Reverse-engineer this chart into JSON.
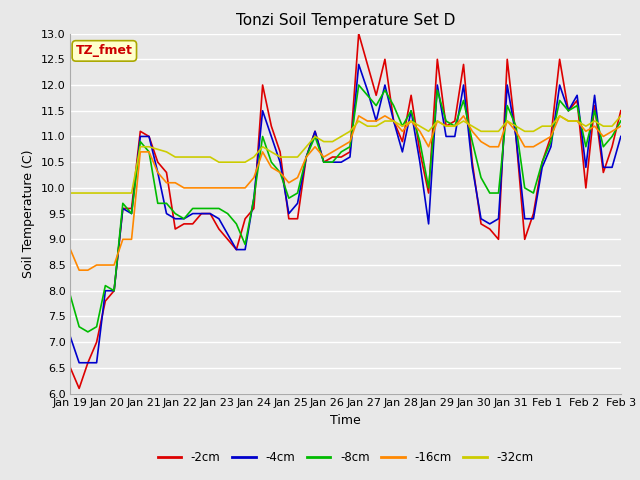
{
  "title": "Tonzi Soil Temperature Set D",
  "xlabel": "Time",
  "ylabel": "Soil Temperature (C)",
  "annotation": "TZ_fmet",
  "ylim": [
    6.0,
    13.0
  ],
  "yticks": [
    6.0,
    6.5,
    7.0,
    7.5,
    8.0,
    8.5,
    9.0,
    9.5,
    10.0,
    10.5,
    11.0,
    11.5,
    12.0,
    12.5,
    13.0
  ],
  "xtick_labels": [
    "Jan 19",
    "Jan 20",
    "Jan 21",
    "Jan 22",
    "Jan 23",
    "Jan 24",
    "Jan 25",
    "Jan 26",
    "Jan 27",
    "Jan 28",
    "Jan 29",
    "Jan 30",
    "Jan 31",
    "Feb 1",
    "Feb 2",
    "Feb 3"
  ],
  "series_labels": [
    "-2cm",
    "-4cm",
    "-8cm",
    "-16cm",
    "-32cm"
  ],
  "series_colors": [
    "#dd0000",
    "#0000cc",
    "#00bb00",
    "#ff8800",
    "#cccc00"
  ],
  "line_width": 1.2,
  "background_color": "#e8e8e8",
  "plot_bg_color": "#e8e8e8",
  "grid_color": "#ffffff",
  "title_fontsize": 11,
  "axis_fontsize": 9,
  "tick_fontsize": 8,
  "series_2cm": [
    6.5,
    6.1,
    6.6,
    7.0,
    7.8,
    8.0,
    9.6,
    9.6,
    11.1,
    11.0,
    10.5,
    10.3,
    9.2,
    9.3,
    9.3,
    9.5,
    9.5,
    9.2,
    9.0,
    8.8,
    9.4,
    9.6,
    12.0,
    11.2,
    10.7,
    9.4,
    9.4,
    10.6,
    11.1,
    10.5,
    10.6,
    10.6,
    10.7,
    13.0,
    12.4,
    11.8,
    12.5,
    11.3,
    10.9,
    11.8,
    10.7,
    9.9,
    12.5,
    11.2,
    11.3,
    12.4,
    10.5,
    9.3,
    9.2,
    9.0,
    12.5,
    11.0,
    9.0,
    9.5,
    10.5,
    11.0,
    12.5,
    11.5,
    11.7,
    10.0,
    11.6,
    10.3,
    10.8,
    11.5
  ],
  "series_4cm": [
    7.1,
    6.6,
    6.6,
    6.6,
    8.0,
    8.0,
    9.6,
    9.5,
    11.0,
    11.0,
    10.3,
    9.5,
    9.4,
    9.4,
    9.5,
    9.5,
    9.5,
    9.4,
    9.1,
    8.8,
    8.8,
    9.8,
    11.5,
    11.0,
    10.5,
    9.5,
    9.7,
    10.6,
    11.1,
    10.5,
    10.5,
    10.5,
    10.6,
    12.4,
    11.9,
    11.3,
    12.0,
    11.3,
    10.7,
    11.5,
    10.5,
    9.3,
    12.0,
    11.0,
    11.0,
    12.0,
    10.4,
    9.4,
    9.3,
    9.4,
    12.0,
    11.0,
    9.4,
    9.4,
    10.4,
    10.8,
    12.0,
    11.5,
    11.8,
    10.4,
    11.8,
    10.4,
    10.4,
    11.0
  ],
  "series_8cm": [
    7.9,
    7.3,
    7.2,
    7.3,
    8.1,
    8.0,
    9.7,
    9.5,
    10.9,
    10.7,
    9.7,
    9.7,
    9.5,
    9.4,
    9.6,
    9.6,
    9.6,
    9.6,
    9.5,
    9.3,
    8.9,
    9.8,
    11.0,
    10.5,
    10.3,
    9.8,
    9.9,
    10.6,
    11.0,
    10.5,
    10.5,
    10.7,
    10.8,
    12.0,
    11.8,
    11.6,
    11.9,
    11.6,
    11.2,
    11.5,
    10.9,
    10.0,
    11.9,
    11.3,
    11.2,
    11.7,
    10.9,
    10.2,
    9.9,
    9.9,
    11.6,
    11.2,
    10.0,
    9.9,
    10.5,
    10.9,
    11.7,
    11.5,
    11.6,
    10.8,
    11.5,
    10.8,
    11.0,
    11.3
  ],
  "series_16cm": [
    8.8,
    8.4,
    8.4,
    8.5,
    8.5,
    8.5,
    9.0,
    9.0,
    10.7,
    10.7,
    10.3,
    10.1,
    10.1,
    10.0,
    10.0,
    10.0,
    10.0,
    10.0,
    10.0,
    10.0,
    10.0,
    10.2,
    10.7,
    10.4,
    10.3,
    10.1,
    10.2,
    10.6,
    10.8,
    10.6,
    10.7,
    10.8,
    10.9,
    11.4,
    11.3,
    11.3,
    11.4,
    11.3,
    11.1,
    11.3,
    11.1,
    10.8,
    11.3,
    11.2,
    11.2,
    11.4,
    11.1,
    10.9,
    10.8,
    10.8,
    11.3,
    11.1,
    10.8,
    10.8,
    10.9,
    11.0,
    11.4,
    11.3,
    11.3,
    11.1,
    11.2,
    11.0,
    11.1,
    11.2
  ],
  "series_32cm": [
    9.9,
    9.9,
    9.9,
    9.9,
    9.9,
    9.9,
    9.9,
    9.9,
    10.8,
    10.8,
    10.75,
    10.7,
    10.6,
    10.6,
    10.6,
    10.6,
    10.6,
    10.5,
    10.5,
    10.5,
    10.5,
    10.6,
    10.8,
    10.7,
    10.6,
    10.6,
    10.6,
    10.8,
    11.0,
    10.9,
    10.9,
    11.0,
    11.1,
    11.3,
    11.2,
    11.2,
    11.3,
    11.3,
    11.2,
    11.3,
    11.2,
    11.1,
    11.3,
    11.2,
    11.2,
    11.3,
    11.2,
    11.1,
    11.1,
    11.1,
    11.3,
    11.2,
    11.1,
    11.1,
    11.2,
    11.2,
    11.4,
    11.3,
    11.3,
    11.2,
    11.3,
    11.2,
    11.2,
    11.4
  ]
}
